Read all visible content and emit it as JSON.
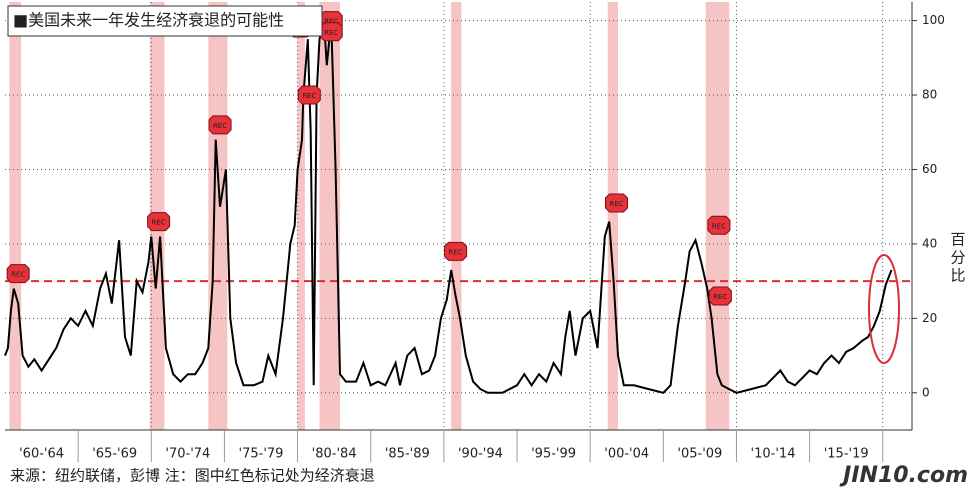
{
  "chart_data": {
    "type": "line",
    "legend_title": "■美国未来一年发生经济衰退的可能性",
    "y_axis_label": "百分比",
    "source": "来源：纽约联储，彭博 注：图中红色标记处为经济衰退",
    "watermark": "JIN10.com",
    "xlim": [
      1960,
      2022
    ],
    "xticks": [
      1965,
      1970,
      1975,
      1980,
      1985,
      1990,
      1995,
      2000,
      2005,
      2010,
      2015,
      2020
    ],
    "x_period_labels": [
      "'60-'64",
      "'65-'69",
      "'70-'74",
      "'75-'79",
      "'80-'84",
      "'85-'89",
      "'90-'94",
      "'95-'99",
      "'00-'04",
      "'05-'09",
      "'10-'14",
      "'15-'19"
    ],
    "ylim": [
      -10,
      105
    ],
    "yticks": [
      0,
      20,
      40,
      60,
      80,
      100
    ],
    "grid": true,
    "threshold": 30,
    "threshold_color": "#d9303a",
    "recession_color": "#f6c4c4",
    "recessions": [
      [
        1960.3,
        1961.1
      ],
      [
        1969.9,
        1970.9
      ],
      [
        1973.9,
        1975.2
      ],
      [
        1980.0,
        1980.5
      ],
      [
        1981.5,
        1982.9
      ],
      [
        1990.5,
        1991.2
      ],
      [
        2001.2,
        2001.9
      ],
      [
        2007.9,
        2009.5
      ]
    ],
    "rec_markers": [
      {
        "x": 1960.9,
        "y": 32,
        "label": "REC"
      },
      {
        "x": 1970.5,
        "y": 46,
        "label": "REC"
      },
      {
        "x": 1974.7,
        "y": 72,
        "label": "REC"
      },
      {
        "x": 1980.2,
        "y": 98,
        "label": "REC"
      },
      {
        "x": 1980.8,
        "y": 80,
        "label": "REC"
      },
      {
        "x": 1982.3,
        "y": 100,
        "label": "REC"
      },
      {
        "x": 1982.3,
        "y": 97,
        "label": "REC"
      },
      {
        "x": 1990.8,
        "y": 38,
        "label": "REC"
      },
      {
        "x": 2001.8,
        "y": 51,
        "label": "REC"
      },
      {
        "x": 2008.8,
        "y": 45,
        "label": "REC"
      },
      {
        "x": 2008.9,
        "y": 26,
        "label": "REC"
      }
    ],
    "series": [
      {
        "name": "美国未来一年发生经济衰退的可能性",
        "color": "#000000",
        "x": [
          1960,
          1960.2,
          1960.4,
          1960.6,
          1960.9,
          1961.2,
          1961.6,
          1962,
          1962.5,
          1963,
          1963.5,
          1964,
          1964.5,
          1965,
          1965.5,
          1966,
          1966.5,
          1966.9,
          1967.3,
          1967.8,
          1968.2,
          1968.6,
          1969,
          1969.4,
          1969.8,
          1970,
          1970.3,
          1970.6,
          1971,
          1971.5,
          1972,
          1972.5,
          1973,
          1973.5,
          1973.9,
          1974.2,
          1974.4,
          1974.7,
          1974.9,
          1975.1,
          1975.4,
          1975.8,
          1976.3,
          1977,
          1977.6,
          1978,
          1978.5,
          1979,
          1979.5,
          1979.8,
          1980,
          1980.3,
          1980.4,
          1980.7,
          1980.9,
          1981.1,
          1981.3,
          1981.5,
          1981.8,
          1982,
          1982.3,
          1982.6,
          1982.9,
          1983.3,
          1984,
          1984.5,
          1985,
          1985.5,
          1986,
          1986.7,
          1987,
          1987.5,
          1988,
          1988.5,
          1989,
          1989.4,
          1989.8,
          1990.2,
          1990.5,
          1990.8,
          1991.1,
          1991.5,
          1992,
          1992.5,
          1993,
          1994,
          1995,
          1995.5,
          1996,
          1996.5,
          1997,
          1997.5,
          1998,
          1998.3,
          1998.6,
          1999,
          1999.5,
          2000,
          2000.5,
          2000.8,
          2001,
          2001.3,
          2001.6,
          2001.9,
          2002.3,
          2003,
          2004,
          2005,
          2005.5,
          2006,
          2006.5,
          2006.8,
          2007.2,
          2007.6,
          2008,
          2008.3,
          2008.7,
          2009,
          2009.5,
          2010,
          2011,
          2012,
          2012.5,
          2013,
          2013.5,
          2014,
          2014.5,
          2015,
          2015.5,
          2016,
          2016.5,
          2017,
          2017.5,
          2018,
          2018.6,
          2019,
          2019.4,
          2019.8,
          2020.2,
          2020.6
        ],
        "values": [
          10,
          12,
          22,
          28,
          24,
          10,
          7,
          9,
          6,
          9,
          12,
          17,
          20,
          18,
          22,
          18,
          28,
          32,
          24,
          41,
          15,
          10,
          30,
          27,
          35,
          42,
          28,
          42,
          12,
          5,
          3,
          5,
          5,
          8,
          12,
          30,
          68,
          50,
          55,
          60,
          20,
          8,
          2,
          2,
          3,
          10,
          5,
          20,
          40,
          45,
          60,
          68,
          80,
          95,
          70,
          2,
          80,
          95,
          100,
          88,
          100,
          60,
          5,
          3,
          3,
          8,
          2,
          3,
          2,
          8,
          2,
          10,
          12,
          5,
          6,
          10,
          20,
          25,
          33,
          26,
          20,
          10,
          3,
          1,
          0,
          0,
          2,
          5,
          2,
          5,
          3,
          8,
          5,
          15,
          22,
          10,
          20,
          22,
          12,
          30,
          42,
          46,
          30,
          10,
          2,
          2,
          1,
          0,
          2,
          18,
          30,
          38,
          41,
          35,
          28,
          20,
          5,
          2,
          1,
          0,
          1,
          2,
          4,
          6,
          3,
          2,
          4,
          6,
          5,
          8,
          10,
          8,
          11,
          12,
          14,
          15,
          18,
          22,
          29,
          33
        ]
      }
    ]
  }
}
